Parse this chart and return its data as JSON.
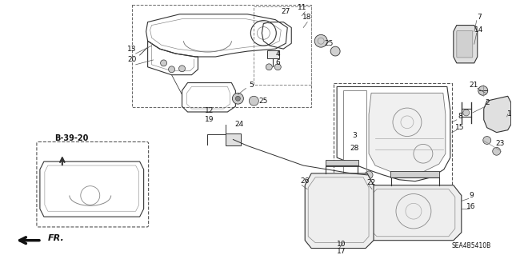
{
  "background_color": "#ffffff",
  "diagram_code": "SEA4B5410B",
  "reference_label": "B-39-20",
  "fr_label": "FR.",
  "label_fontsize": 6.5,
  "line_color": "#333333",
  "gray": "#555555"
}
